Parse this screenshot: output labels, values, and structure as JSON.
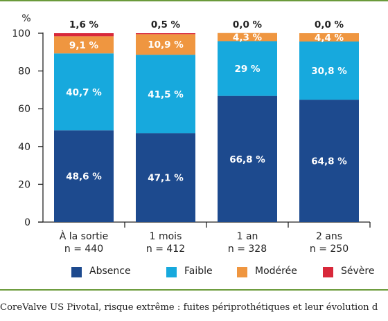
{
  "chart_data": {
    "type": "bar",
    "stacked": true,
    "ylabel": "%",
    "ylim": [
      0,
      100
    ],
    "yticks": [
      "0",
      "20",
      "40",
      "60",
      "80",
      "100"
    ],
    "categories": [
      {
        "label": "À la sortie",
        "n": "n = 440"
      },
      {
        "label": "1 mois",
        "n": "n = 412"
      },
      {
        "label": "1 an",
        "n": "n = 328"
      },
      {
        "label": "2 ans",
        "n": "n = 250"
      }
    ],
    "top_labels": [
      "1,6 %",
      "0,5 %",
      "0,0 %",
      "0,0 %"
    ],
    "series": [
      {
        "name": "Absence",
        "color": "#1d4a8e",
        "label_color": "#ffffff",
        "values": [
          48.6,
          47.1,
          66.8,
          64.8
        ],
        "labels": [
          "48,6 %",
          "47,1 %",
          "66,8 %",
          "64,8 %"
        ]
      },
      {
        "name": "Faible",
        "color": "#17a9dd",
        "label_color": "#ffffff",
        "values": [
          40.7,
          41.5,
          29,
          30.8
        ],
        "labels": [
          "40,7 %",
          "41,5 %",
          "29 %",
          "30,8 %"
        ]
      },
      {
        "name": "Modérée",
        "color": "#ef9640",
        "label_color": "#ffffff",
        "values": [
          9.1,
          10.9,
          4.3,
          4.4
        ],
        "labels": [
          "9,1 %",
          "10,9 %",
          "4,3 %",
          "4,4 %"
        ]
      },
      {
        "name": "Sévère",
        "color": "#d8283a",
        "label_color": "#ffffff",
        "values": [
          1.6,
          0.5,
          0,
          0
        ],
        "labels": [
          "",
          "",
          "",
          ""
        ]
      }
    ]
  },
  "caption": "CoreValve US Pivotal, risque extrême : fuites périprothétiques et leur évolution d",
  "colors": {
    "rule": "#6a9a3a",
    "axis": "#222222"
  }
}
